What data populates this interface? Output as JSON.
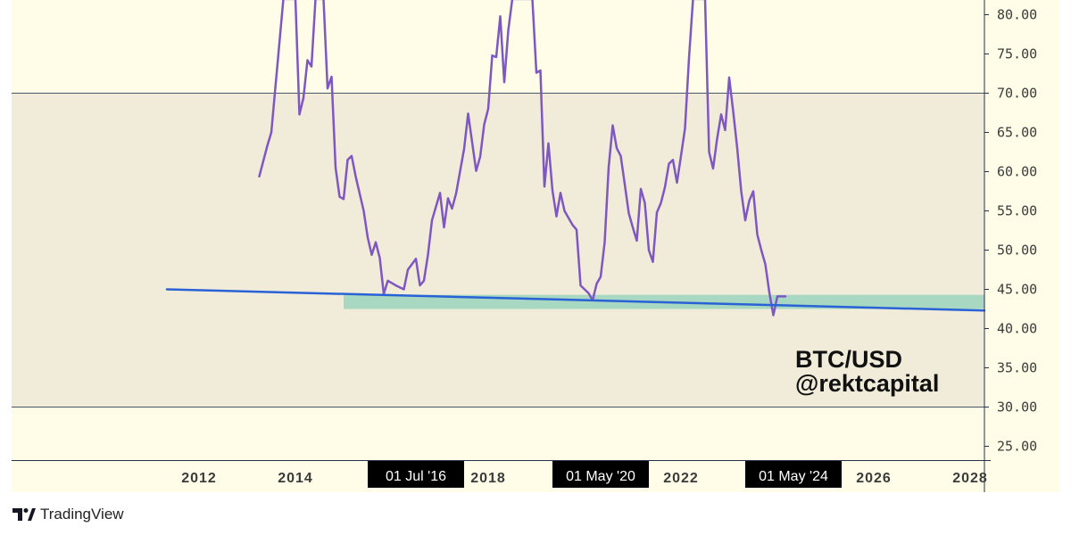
{
  "chart_data": {
    "type": "line",
    "symbol_watermark": [
      "BTC/USD",
      "@rektcapital"
    ],
    "y_axis": {
      "ticks": [
        80,
        75,
        70,
        65,
        60,
        55,
        50,
        45,
        40,
        35,
        30,
        25
      ],
      "tick_labels": [
        "80.00",
        "75.00",
        "70.00",
        "65.00",
        "60.00",
        "55.00",
        "50.00",
        "45.00",
        "40.00",
        "35.00",
        "30.00",
        "25.00"
      ],
      "range": [
        24,
        82
      ]
    },
    "x_axis": {
      "tick_labels": [
        "2012",
        "2014",
        "2018",
        "2022",
        "2026",
        "2028"
      ],
      "highlighted_dates": [
        "01 Jul '16",
        "01 May '20",
        "01 May '24"
      ],
      "range": [
        "2009-09",
        "2029-07"
      ]
    },
    "bands": [
      {
        "name": "",
        "from": 30,
        "to": 70,
        "color": "#f1ecd9"
      }
    ],
    "support_zone": {
      "from_date": "2015-01",
      "to_date": "2029-07",
      "from": 42.5,
      "to": 44.3,
      "color": "#a8d8c1"
    },
    "series": [
      {
        "name": "",
        "color": "#7e57c2",
        "points": [
          [
            "2013-04",
            59.4
          ],
          [
            "2013-06",
            63.3
          ],
          [
            "2013-07",
            65.0
          ],
          [
            "2013-10",
            82.0
          ],
          [
            "2014-01",
            82.0
          ],
          [
            "2014-02",
            67.3
          ],
          [
            "2014-03",
            69.4
          ],
          [
            "2014-04",
            74.2
          ],
          [
            "2014-05",
            73.4
          ],
          [
            "2014-06",
            82.0
          ],
          [
            "2014-08",
            82.0
          ],
          [
            "2014-09",
            70.6
          ],
          [
            "2014-10",
            72.1
          ],
          [
            "2014-11",
            60.5
          ],
          [
            "2014-12",
            56.8
          ],
          [
            "2015-01",
            56.5
          ],
          [
            "2015-02",
            61.5
          ],
          [
            "2015-03",
            62.0
          ],
          [
            "2015-04",
            59.4
          ],
          [
            "2015-06",
            55.0
          ],
          [
            "2015-07",
            51.6
          ],
          [
            "2015-08",
            49.4
          ],
          [
            "2015-09",
            51.0
          ],
          [
            "2015-10",
            49.0
          ],
          [
            "2015-11",
            44.4
          ],
          [
            "2015-12",
            46.1
          ],
          [
            "2016-02",
            45.5
          ],
          [
            "2016-04",
            45.0
          ],
          [
            "2016-05",
            47.5
          ],
          [
            "2016-07",
            48.9
          ],
          [
            "2016-08",
            45.5
          ],
          [
            "2016-09",
            46.1
          ],
          [
            "2016-10",
            49.4
          ],
          [
            "2016-11",
            53.8
          ],
          [
            "2017-01",
            57.3
          ],
          [
            "2017-02",
            52.9
          ],
          [
            "2017-03",
            56.6
          ],
          [
            "2017-04",
            55.3
          ],
          [
            "2017-05",
            57.2
          ],
          [
            "2017-07",
            62.9
          ],
          [
            "2017-08",
            67.4
          ],
          [
            "2017-10",
            60.1
          ],
          [
            "2017-11",
            61.9
          ],
          [
            "2017-12",
            66.0
          ],
          [
            "2018-01",
            68.0
          ],
          [
            "2018-02",
            74.8
          ],
          [
            "2018-03",
            74.6
          ],
          [
            "2018-04",
            79.8
          ],
          [
            "2018-05",
            71.4
          ],
          [
            "2018-06",
            78.0
          ],
          [
            "2018-07",
            82.0
          ],
          [
            "2018-12",
            82.0
          ],
          [
            "2019-01",
            72.6
          ],
          [
            "2019-02",
            72.9
          ],
          [
            "2019-03",
            58.1
          ],
          [
            "2019-04",
            63.6
          ],
          [
            "2019-05",
            57.6
          ],
          [
            "2019-06",
            54.3
          ],
          [
            "2019-07",
            57.3
          ],
          [
            "2019-08",
            55.0
          ],
          [
            "2019-10",
            53.2
          ],
          [
            "2019-11",
            52.6
          ],
          [
            "2019-12",
            45.5
          ],
          [
            "2020-02",
            44.5
          ],
          [
            "2020-03",
            43.6
          ],
          [
            "2020-04",
            45.7
          ],
          [
            "2020-05",
            46.6
          ],
          [
            "2020-06",
            51.0
          ],
          [
            "2020-07",
            60.6
          ],
          [
            "2020-08",
            65.9
          ],
          [
            "2020-09",
            63.0
          ],
          [
            "2020-10",
            62.0
          ],
          [
            "2020-11",
            58.4
          ],
          [
            "2020-12",
            54.7
          ],
          [
            "2021-01",
            52.9
          ],
          [
            "2021-02",
            51.2
          ],
          [
            "2021-03",
            57.8
          ],
          [
            "2021-04",
            56.0
          ],
          [
            "2021-05",
            50.0
          ],
          [
            "2021-06",
            48.5
          ],
          [
            "2021-07",
            54.8
          ],
          [
            "2021-08",
            56.0
          ],
          [
            "2021-09",
            58.0
          ],
          [
            "2021-10",
            61.0
          ],
          [
            "2021-11",
            61.5
          ],
          [
            "2021-12",
            58.6
          ],
          [
            "2022-01",
            62.0
          ],
          [
            "2022-02",
            65.5
          ],
          [
            "2022-03",
            74.5
          ],
          [
            "2022-04",
            82.0
          ],
          [
            "2022-07",
            82.0
          ],
          [
            "2022-08",
            62.5
          ],
          [
            "2022-09",
            60.4
          ],
          [
            "2022-10",
            64.2
          ],
          [
            "2022-11",
            67.3
          ],
          [
            "2022-12",
            65.3
          ],
          [
            "2023-01",
            72.0
          ],
          [
            "2023-02",
            67.7
          ],
          [
            "2023-03",
            63.0
          ],
          [
            "2023-04",
            57.5
          ],
          [
            "2023-05",
            53.8
          ],
          [
            "2023-06",
            56.3
          ],
          [
            "2023-07",
            57.5
          ],
          [
            "2023-08",
            52.0
          ],
          [
            "2023-09",
            50.0
          ],
          [
            "2023-10",
            48.2
          ],
          [
            "2023-11",
            44.6
          ],
          [
            "2023-12",
            41.7
          ],
          [
            "2024-01",
            44.1
          ],
          [
            "2024-03",
            44.1
          ]
        ]
      },
      {
        "name": "",
        "color": "#2962d6",
        "points": [
          [
            "2011-05",
            45.0
          ],
          [
            "2029-07",
            42.3
          ]
        ]
      }
    ],
    "grid": false,
    "legend": "none"
  },
  "brand": {
    "name": "TradingView",
    "icon": "tradingview-logo-icon"
  }
}
